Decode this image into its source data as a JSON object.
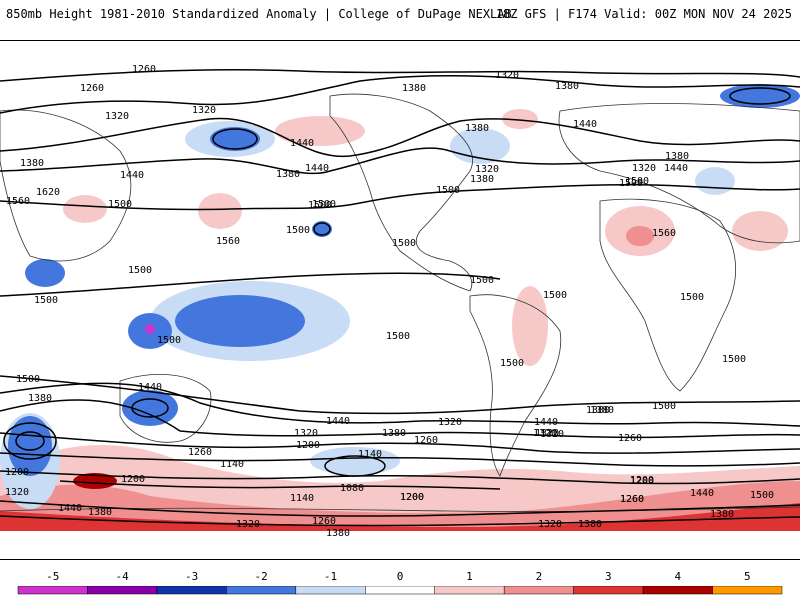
{
  "title": {
    "left": "850mb Height 1981-2010 Standardized Anomaly | College of DuPage NEXLAB",
    "right": "18Z GFS | F174 Valid: 00Z MON NOV 24 2025"
  },
  "colorbar": {
    "ticks": [
      "-5",
      "-4",
      "-3",
      "-2",
      "-1",
      "0",
      "1",
      "2",
      "3",
      "4",
      "5"
    ],
    "colors": [
      "#cc33cc",
      "#8800aa",
      "#1133aa",
      "#4477dd",
      "#c8dcf5",
      "#ffffff",
      "#f7c8c8",
      "#ef8f8f",
      "#dd3333",
      "#aa0000",
      "#ff9900"
    ]
  },
  "contour_labels": [
    "1260",
    "1260",
    "1320",
    "1380",
    "1320",
    "1380",
    "1440",
    "1320",
    "1440",
    "1380",
    "1380",
    "1320",
    "1440",
    "1380",
    "1500",
    "1320",
    "1500",
    "1380",
    "1380",
    "1440",
    "1440",
    "1500",
    "1620",
    "1560",
    "1500",
    "1500",
    "1500",
    "1500",
    "1560",
    "1500",
    "1500",
    "1500",
    "1500",
    "1500",
    "1500",
    "1500",
    "1500",
    "1500",
    "1500",
    "1440",
    "1440",
    "1380",
    "1380",
    "1320",
    "1320",
    "1500",
    "1440",
    "1380",
    "1320",
    "1260",
    "1260",
    "1320",
    "1200",
    "1140",
    "1200",
    "1260",
    "1080",
    "1140",
    "1200",
    "1140",
    "1200",
    "1260",
    "1200",
    "1440",
    "1500",
    "1380",
    "1320",
    "1260",
    "1380",
    "1320",
    "1560",
    "1380",
    "1200",
    "1320",
    "1440",
    "1380",
    "1500",
    "1320",
    "1380",
    "1200",
    "1260"
  ]
}
